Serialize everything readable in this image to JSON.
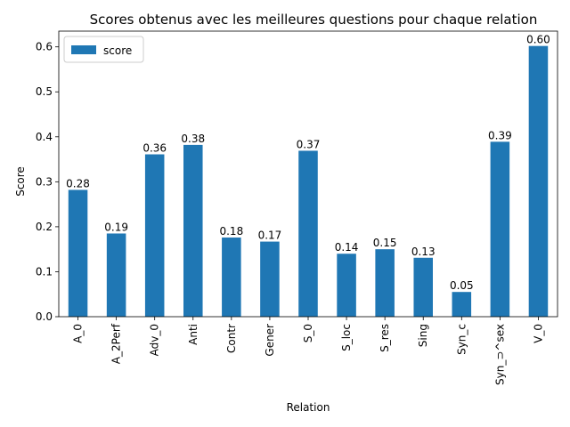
{
  "chart_data": {
    "type": "bar",
    "title": "Scores obtenus avec les meilleures questions pour chaque relation",
    "xlabel": "Relation",
    "ylabel": "Score",
    "ylim": [
      0,
      0.635
    ],
    "yticks": [
      "0.0",
      "0.1",
      "0.2",
      "0.3",
      "0.4",
      "0.5",
      "0.6"
    ],
    "categories": [
      "A_0",
      "A_2Perf",
      "Adv_0",
      "Anti",
      "Contr",
      "Gener",
      "S_0",
      "S_loc",
      "S_res",
      "Sing",
      "Syn_c",
      "Syn_⊃^sex",
      "V_0"
    ],
    "series": [
      {
        "name": "score",
        "color": "#1f77b4",
        "values": [
          0.282,
          0.185,
          0.361,
          0.382,
          0.176,
          0.167,
          0.369,
          0.14,
          0.15,
          0.131,
          0.055,
          0.389,
          0.602
        ],
        "labels": [
          "0.28",
          "0.19",
          "0.36",
          "0.38",
          "0.18",
          "0.17",
          "0.37",
          "0.14",
          "0.15",
          "0.13",
          "0.05",
          "0.39",
          "0.60"
        ]
      }
    ],
    "legend_position": "top-left",
    "grid": false
  }
}
